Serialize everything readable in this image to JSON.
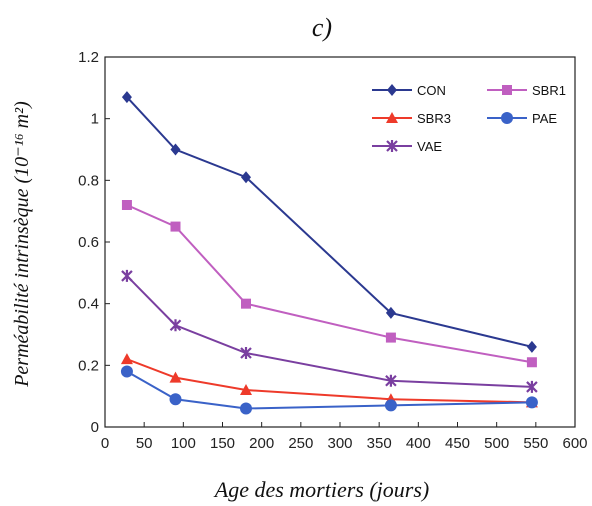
{
  "chart_data": {
    "type": "line",
    "title": "c)",
    "xlabel": "Age des mortiers (jours)",
    "ylabel": "Perméabilité intrinsèque (10⁻¹⁶ m²)",
    "xlim": [
      0,
      600
    ],
    "ylim": [
      0,
      1.2
    ],
    "xticks": [
      "0",
      "50",
      "100",
      "150",
      "200",
      "250",
      "300",
      "350",
      "400",
      "450",
      "500",
      "550",
      "600"
    ],
    "yticks": [
      "0",
      "0.2",
      "0.4",
      "0.6",
      "0.8",
      "1",
      "1.2"
    ],
    "grid": false,
    "legend_position": "top-right",
    "x": [
      28,
      90,
      180,
      365,
      545
    ],
    "series": [
      {
        "name": "CON",
        "color": "#2b3990",
        "marker": "diamond",
        "values": [
          1.07,
          0.9,
          0.81,
          0.37,
          0.26
        ]
      },
      {
        "name": "SBR1",
        "color": "#c05fc0",
        "marker": "square",
        "values": [
          0.72,
          0.65,
          0.4,
          0.29,
          0.21
        ]
      },
      {
        "name": "SBR3",
        "color": "#ee3a2a",
        "marker": "triangle",
        "values": [
          0.22,
          0.16,
          0.12,
          0.09,
          0.08
        ]
      },
      {
        "name": "PAE",
        "color": "#3a62c8",
        "marker": "circle",
        "values": [
          0.18,
          0.09,
          0.06,
          0.07,
          0.08
        ]
      },
      {
        "name": "VAE",
        "color": "#7a3fa0",
        "marker": "star",
        "values": [
          0.49,
          0.33,
          0.24,
          0.15,
          0.13
        ]
      }
    ]
  }
}
